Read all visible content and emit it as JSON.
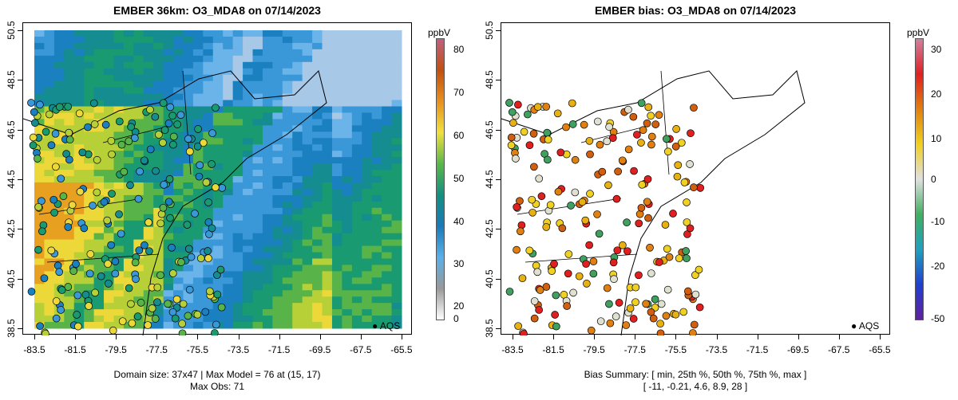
{
  "left": {
    "title": "EMBER 36km: O3_MDA8 on 07/14/2023",
    "unit": "ppbV",
    "caption1": "Domain size: 37x47 | Max Model = 76 at (15, 17)",
    "caption2": "Max Obs: 71",
    "colorbar_ticks": [
      "80",
      "70",
      "60",
      "50",
      "40",
      "30",
      "20",
      "0"
    ],
    "legend": "AQS"
  },
  "right": {
    "title": "EMBER bias: O3_MDA8 on 07/14/2023",
    "unit": "ppbV",
    "caption1": "Bias Summary: [ min, 25th %, 50th %, 75th %, max ]",
    "caption2": "[ -11,   -0.21,   4.6,   8.9,   28 ]",
    "colorbar_ticks": [
      "30",
      "20",
      "10",
      "0",
      "-10",
      "-20",
      "-50"
    ],
    "legend": "AQS"
  },
  "x_ticks": [
    "-83.5",
    "-81.5",
    "-79.5",
    "-77.5",
    "-75.5",
    "-73.5",
    "-71.5",
    "-69.5",
    "-67.5",
    "-65.5"
  ],
  "y_ticks": [
    "50.5",
    "48.5",
    "46.5",
    "44.5",
    "42.5",
    "40.5",
    "38.5"
  ],
  "colors": {
    "model_colorbar": [
      "#ffffff",
      "#999999",
      "#5ab0e8",
      "#1a7ab8",
      "#149080",
      "#5ab84a",
      "#f0e040",
      "#e89020",
      "#c05010",
      "#c06080"
    ],
    "bias_colorbar": [
      "#6020a0",
      "#2040d0",
      "#20a0c0",
      "#40b060",
      "#e0e0e0",
      "#f0d020",
      "#e08010",
      "#e02020",
      "#d080a0"
    ]
  }
}
